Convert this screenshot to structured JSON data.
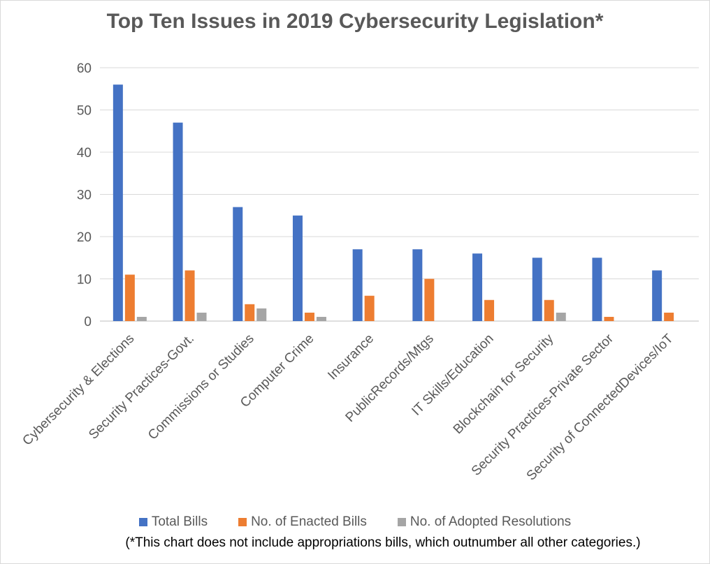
{
  "chart_data": {
    "type": "bar",
    "title": "Top Ten Issues in 2019 Cybersecurity Legislation*",
    "xlabel": "",
    "ylabel": "",
    "ylim": [
      0,
      60
    ],
    "yticks": [
      0,
      10,
      20,
      30,
      40,
      50,
      60
    ],
    "grid": true,
    "legend_position": "bottom",
    "categories": [
      "Cybersecurity & Elections",
      "Security Practices-Govt.",
      "Commissions or Studies",
      "Computer Crime",
      "Insurance",
      "PublicRecords/Mtgs",
      "IT Skills/Education",
      "Blockchain for Security",
      "Security Practices-Private Sector",
      "Security of ConnectedDevices/IoT"
    ],
    "series": [
      {
        "name": "Total Bills",
        "color": "#4472C4",
        "values": [
          56,
          47,
          27,
          25,
          17,
          17,
          16,
          15,
          15,
          12
        ]
      },
      {
        "name": "No. of Enacted Bills",
        "color": "#ED7D31",
        "values": [
          11,
          12,
          4,
          2,
          6,
          10,
          5,
          5,
          1,
          2
        ]
      },
      {
        "name": "No. of Adopted Resolutions",
        "color": "#A5A5A5",
        "values": [
          1,
          2,
          3,
          1,
          0,
          0,
          0,
          2,
          0,
          0
        ]
      }
    ],
    "footnote": "(*This chart does not include appropriations bills, which outnumber all other categories.)"
  }
}
